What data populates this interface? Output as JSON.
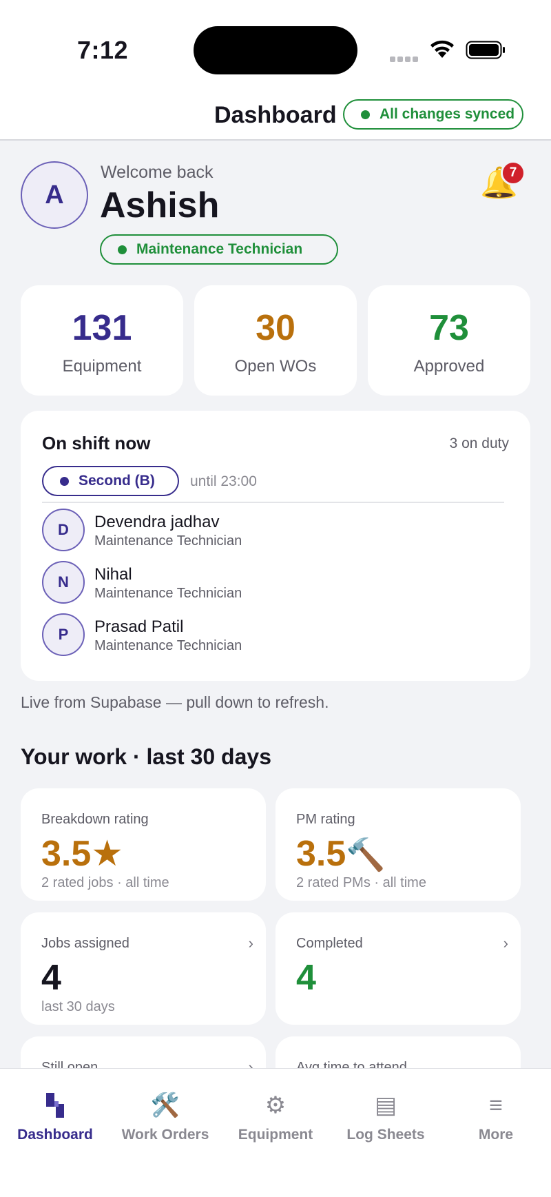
{
  "status_bar": {
    "time": "7:12"
  },
  "header": {
    "title": "Dashboard",
    "sync_status": "All changes synced"
  },
  "profile": {
    "avatar_initial": "A",
    "greeting": "Welcome back",
    "name": "Ashish",
    "role": "Maintenance Technician",
    "notifications_count": "7"
  },
  "stats": [
    {
      "value": "131",
      "label": "Equipment",
      "color": "#372c8c"
    },
    {
      "value": "30",
      "label": "Open WOs",
      "color": "#b9700c"
    },
    {
      "value": "73",
      "label": "Approved",
      "color": "#1f8f3a"
    }
  ],
  "shift": {
    "title": "On shift now",
    "on_duty": "3 on duty",
    "shift_name": "Second (B)",
    "until": "until 23:00",
    "technicians": [
      {
        "initial": "D",
        "name": "Devendra jadhav",
        "role": "Maintenance Technician"
      },
      {
        "initial": "N",
        "name": "Nihal",
        "role": "Maintenance Technician"
      },
      {
        "initial": "P",
        "name": "Prasad Patil",
        "role": "Maintenance Technician"
      }
    ]
  },
  "live_note": "Live from Supabase — pull down to refresh.",
  "work_section": {
    "title": "Your work · last 30 days",
    "breakdown": {
      "label": "Breakdown rating",
      "value": "3.5",
      "icon": "★",
      "sub": "2 rated jobs · all time"
    },
    "pm": {
      "label": "PM rating",
      "value": "3.5",
      "icon": "🔨",
      "sub": "2 rated PMs · all time"
    },
    "jobs_assigned": {
      "label": "Jobs assigned",
      "value": "4",
      "sub": "last 30 days"
    },
    "completed": {
      "label": "Completed",
      "value": "4"
    },
    "still_open": {
      "label": "Still open"
    },
    "avg_time": {
      "label": "Avg time to attend"
    }
  },
  "tabs": [
    {
      "label": "Dashboard",
      "icon": "dashboard-icon",
      "active": true
    },
    {
      "label": "Work Orders",
      "icon": "🛠️"
    },
    {
      "label": "Equipment",
      "icon": "⚙"
    },
    {
      "label": "Log Sheets",
      "icon": "▤"
    },
    {
      "label": "More",
      "icon": "≡"
    }
  ],
  "colors": {
    "accent": "#372c8c",
    "success": "#1f8f3a",
    "warning": "#b9700c",
    "danger": "#d0202a"
  }
}
